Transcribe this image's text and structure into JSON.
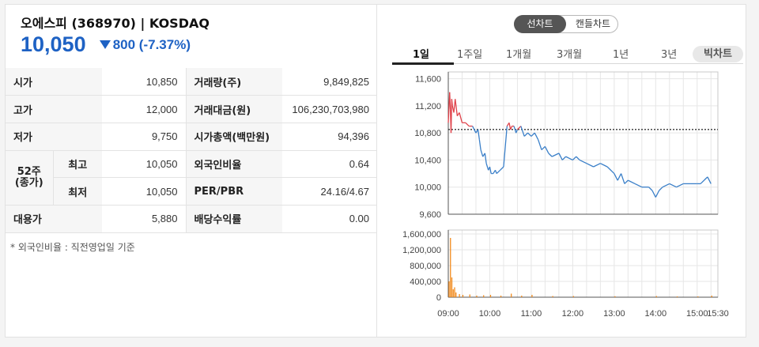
{
  "stock": {
    "name": "오에스피",
    "code": "(368970)",
    "market": "| KOSDAQ",
    "price": "10,050",
    "change": "800",
    "change_pct": "(-7.37%)"
  },
  "info": {
    "open_label": "시가",
    "open": "10,850",
    "volume_label": "거래량(주)",
    "volume": "9,849,825",
    "high_label": "고가",
    "high": "12,000",
    "trade_value_label": "거래대금(원)",
    "trade_value": "106,230,703,980",
    "low_label": "저가",
    "low": "9,750",
    "market_cap_label": "시가총액(백만원)",
    "market_cap": "94,396",
    "week52_label_1": "52주",
    "week52_label_2": "(종가)",
    "week52_high_label": "최고",
    "week52_high": "10,050",
    "foreign_label": "외국인비율",
    "foreign": "0.64",
    "week52_low_label": "최저",
    "week52_low": "10,050",
    "per_pbr_label": "PER/PBR",
    "per_pbr": "24.16/4.67",
    "substitute_label": "대용가",
    "substitute": "5,880",
    "dividend_label": "배당수익률",
    "dividend": "0.00"
  },
  "footnote": "* 외국인비율 : 직전영업일 기준",
  "chart_toggle": {
    "line": "선차트",
    "candle": "캔들차트"
  },
  "periods": [
    "1일",
    "1주일",
    "1개월",
    "3개월",
    "1년",
    "3년"
  ],
  "big_chart_label": "빅차트",
  "colors": {
    "down": "#1e62c4",
    "up_line": "#e0424a",
    "price_line": "#3a7fc8",
    "volume": "#f08a1c"
  },
  "chart_data": [
    {
      "type": "line",
      "title": "",
      "x_ticks": [
        "09:00",
        "10:00",
        "11:00",
        "12:00",
        "13:00",
        "14:00",
        "15:00",
        "15:30"
      ],
      "y_ticks": [
        "11,600",
        "11,200",
        "10,800",
        "10,400",
        "10,000",
        "9,600"
      ],
      "ylim": [
        9600,
        11700
      ],
      "reference_price": 10850,
      "grid": true,
      "series": [
        {
          "x": [
            "09:00",
            "09:02",
            "09:03",
            "09:04",
            "09:05",
            "09:06",
            "09:08",
            "09:10",
            "09:13",
            "09:16",
            "09:20",
            "09:25",
            "09:30",
            "09:35",
            "09:40",
            "09:43",
            "09:45",
            "09:47",
            "09:50",
            "09:53",
            "09:55",
            "09:58",
            "10:00",
            "10:02",
            "10:05",
            "10:08",
            "10:10",
            "10:15",
            "10:20",
            "10:25",
            "10:28",
            "10:30",
            "10:32",
            "10:35",
            "10:38",
            "10:40",
            "10:45",
            "10:50",
            "10:55",
            "11:00",
            "11:05",
            "11:10",
            "11:15",
            "11:20",
            "11:25",
            "11:30",
            "11:40",
            "11:45",
            "11:50",
            "12:00",
            "12:05",
            "12:10",
            "12:20",
            "12:30",
            "12:40",
            "12:50",
            "13:00",
            "13:05",
            "13:10",
            "13:15",
            "13:20",
            "13:30",
            "13:40",
            "13:50",
            "13:55",
            "14:00",
            "14:05",
            "14:10",
            "14:20",
            "14:30",
            "14:40",
            "14:50",
            "15:00",
            "15:05",
            "15:10",
            "15:15",
            "15:20"
          ],
          "y": [
            10950,
            11400,
            11150,
            10800,
            11300,
            11200,
            11100,
            11300,
            11050,
            11100,
            10950,
            10950,
            10900,
            10900,
            10800,
            10850,
            10700,
            10550,
            10450,
            10500,
            10350,
            10250,
            10300,
            10200,
            10200,
            10250,
            10200,
            10250,
            10300,
            10900,
            10950,
            10850,
            10900,
            10900,
            10800,
            10850,
            10900,
            10750,
            10800,
            10750,
            10800,
            10700,
            10550,
            10600,
            10500,
            10450,
            10500,
            10400,
            10450,
            10400,
            10450,
            10400,
            10350,
            10300,
            10350,
            10300,
            10200,
            10100,
            10200,
            10050,
            10100,
            10050,
            10000,
            10000,
            9950,
            9850,
            9950,
            10000,
            10050,
            10000,
            10050,
            10050,
            10050,
            10050,
            10100,
            10150,
            10050
          ]
        }
      ]
    },
    {
      "type": "bar",
      "title": "",
      "y_ticks": [
        "1,600,000",
        "1,200,000",
        "800,000",
        "400,000",
        "0"
      ],
      "ylim": [
        0,
        1700000
      ],
      "x": [
        "09:00",
        "09:02",
        "09:04",
        "09:06",
        "09:08",
        "09:10",
        "09:15",
        "09:20",
        "09:30",
        "09:40",
        "09:50",
        "10:00",
        "10:15",
        "10:30",
        "10:45",
        "11:00",
        "11:30",
        "12:00",
        "13:00",
        "14:00",
        "14:30",
        "15:00",
        "15:20"
      ],
      "values": [
        400000,
        1500000,
        500000,
        200000,
        250000,
        120000,
        80000,
        60000,
        70000,
        40000,
        50000,
        60000,
        40000,
        90000,
        40000,
        60000,
        30000,
        30000,
        25000,
        30000,
        20000,
        20000,
        40000
      ]
    }
  ]
}
